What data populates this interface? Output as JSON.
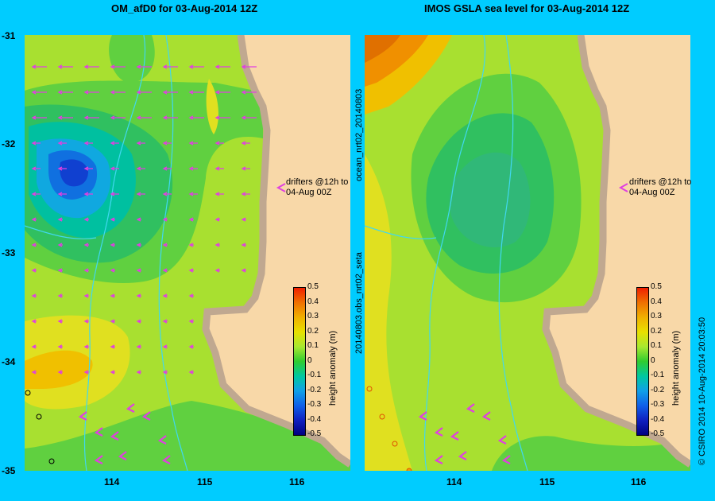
{
  "panels": {
    "left": {
      "title": "OM_afD0  for 03-Aug-2014 12Z"
    },
    "right": {
      "title": "IMOS  GSLA sea level  for 03-Aug-2014 12Z"
    }
  },
  "y_ticks": [
    "-31",
    "-32",
    "-33",
    "-34",
    "-35"
  ],
  "x_ticks": [
    "114",
    "115",
    "116"
  ],
  "drifter_note": {
    "line1": "drifters @12h to",
    "line2": "04-Aug 00Z"
  },
  "colorbar": {
    "labels": [
      "0.5",
      "0.4",
      "0.3",
      "0.2",
      "0.1",
      "0",
      "-0.1",
      "-0.2",
      "-0.3",
      "-0.4",
      "-0.5"
    ],
    "title": "height anomaly (m)",
    "colors": [
      "#f02000",
      "#f07000",
      "#f0b000",
      "#e8e000",
      "#a8e830",
      "#30cc30",
      "#00c8a0",
      "#10a0e8",
      "#1060e8",
      "#1020c0",
      "#000080"
    ]
  },
  "side_text": {
    "right_vertical": "20140803.obs_nrt02_seta",
    "right_vertical2": "ocean_nrt02_20140803"
  },
  "footer_text": {
    "credit": "© CSIRO 2014   10-Aug-2014 20:03:50"
  },
  "colors": {
    "background": "#00ccff",
    "land": "#f8d8a8",
    "coast": "#c0a890",
    "vectors": "#e040e0",
    "rivers": "#40d8f0"
  }
}
